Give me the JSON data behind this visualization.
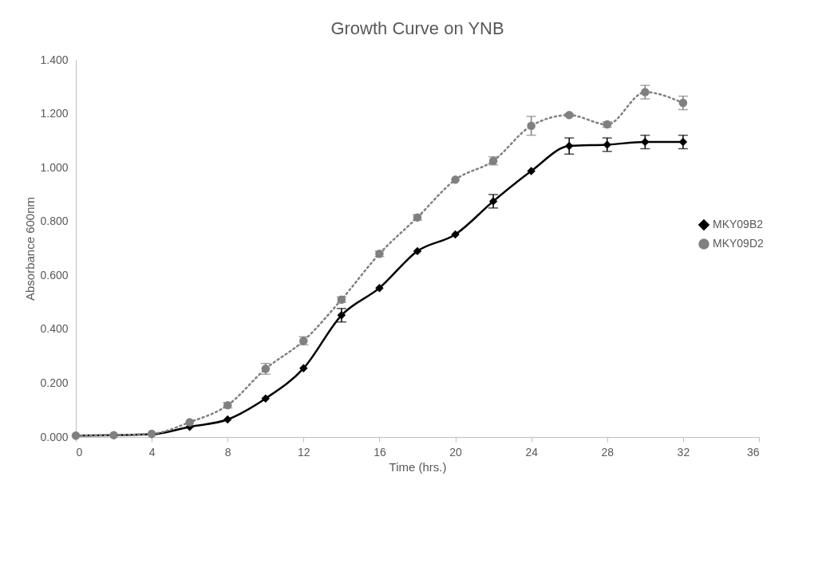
{
  "chart_data": {
    "type": "line",
    "title": "Growth Curve on YNB",
    "xlabel": "Time (hrs.)",
    "ylabel": "Absorbance 600nm",
    "x": [
      0,
      2,
      4,
      6,
      8,
      10,
      12,
      14,
      16,
      18,
      20,
      22,
      24,
      26,
      28,
      30,
      32
    ],
    "series": [
      {
        "name": "MKY09B2",
        "color": "#000000",
        "marker": "diamond",
        "line_style": "solid",
        "values": [
          0.005,
          0.007,
          0.01,
          0.038,
          0.065,
          0.143,
          0.255,
          0.452,
          0.553,
          0.69,
          0.752,
          0.875,
          0.987,
          1.08,
          1.085,
          1.095,
          1.095
        ],
        "errors": [
          null,
          null,
          null,
          null,
          null,
          null,
          null,
          0.025,
          null,
          null,
          null,
          0.025,
          null,
          0.03,
          0.025,
          0.025,
          0.025
        ]
      },
      {
        "name": "MKY09D2",
        "color": "#808080",
        "marker": "circle",
        "line_style": "dotted",
        "values": [
          0.005,
          0.007,
          0.012,
          0.055,
          0.118,
          0.253,
          0.357,
          0.51,
          0.68,
          0.815,
          0.955,
          1.025,
          1.155,
          1.195,
          1.16,
          1.28,
          1.24
        ],
        "errors": [
          null,
          null,
          null,
          null,
          0.01,
          0.02,
          0.015,
          0.01,
          0.01,
          0.01,
          null,
          0.015,
          0.035,
          0.005,
          0.01,
          0.025,
          0.025
        ]
      }
    ],
    "xlim": [
      0,
      36
    ],
    "xticks": [
      0,
      4,
      8,
      12,
      16,
      20,
      24,
      28,
      32,
      36
    ],
    "ylim": [
      0,
      1.4
    ],
    "yticks": [
      {
        "value": 0,
        "label": "0.000"
      },
      {
        "value": 0.2,
        "label": "0.200"
      },
      {
        "value": 0.4,
        "label": "0.400"
      },
      {
        "value": 0.6,
        "label": "0.600"
      },
      {
        "value": 0.8,
        "label": "0.800"
      },
      {
        "value": 1.0,
        "label": "1.000"
      },
      {
        "value": 1.2,
        "label": "1.200"
      },
      {
        "value": 1.4,
        "label": "1.400"
      }
    ],
    "legend": "right",
    "grid": false
  }
}
